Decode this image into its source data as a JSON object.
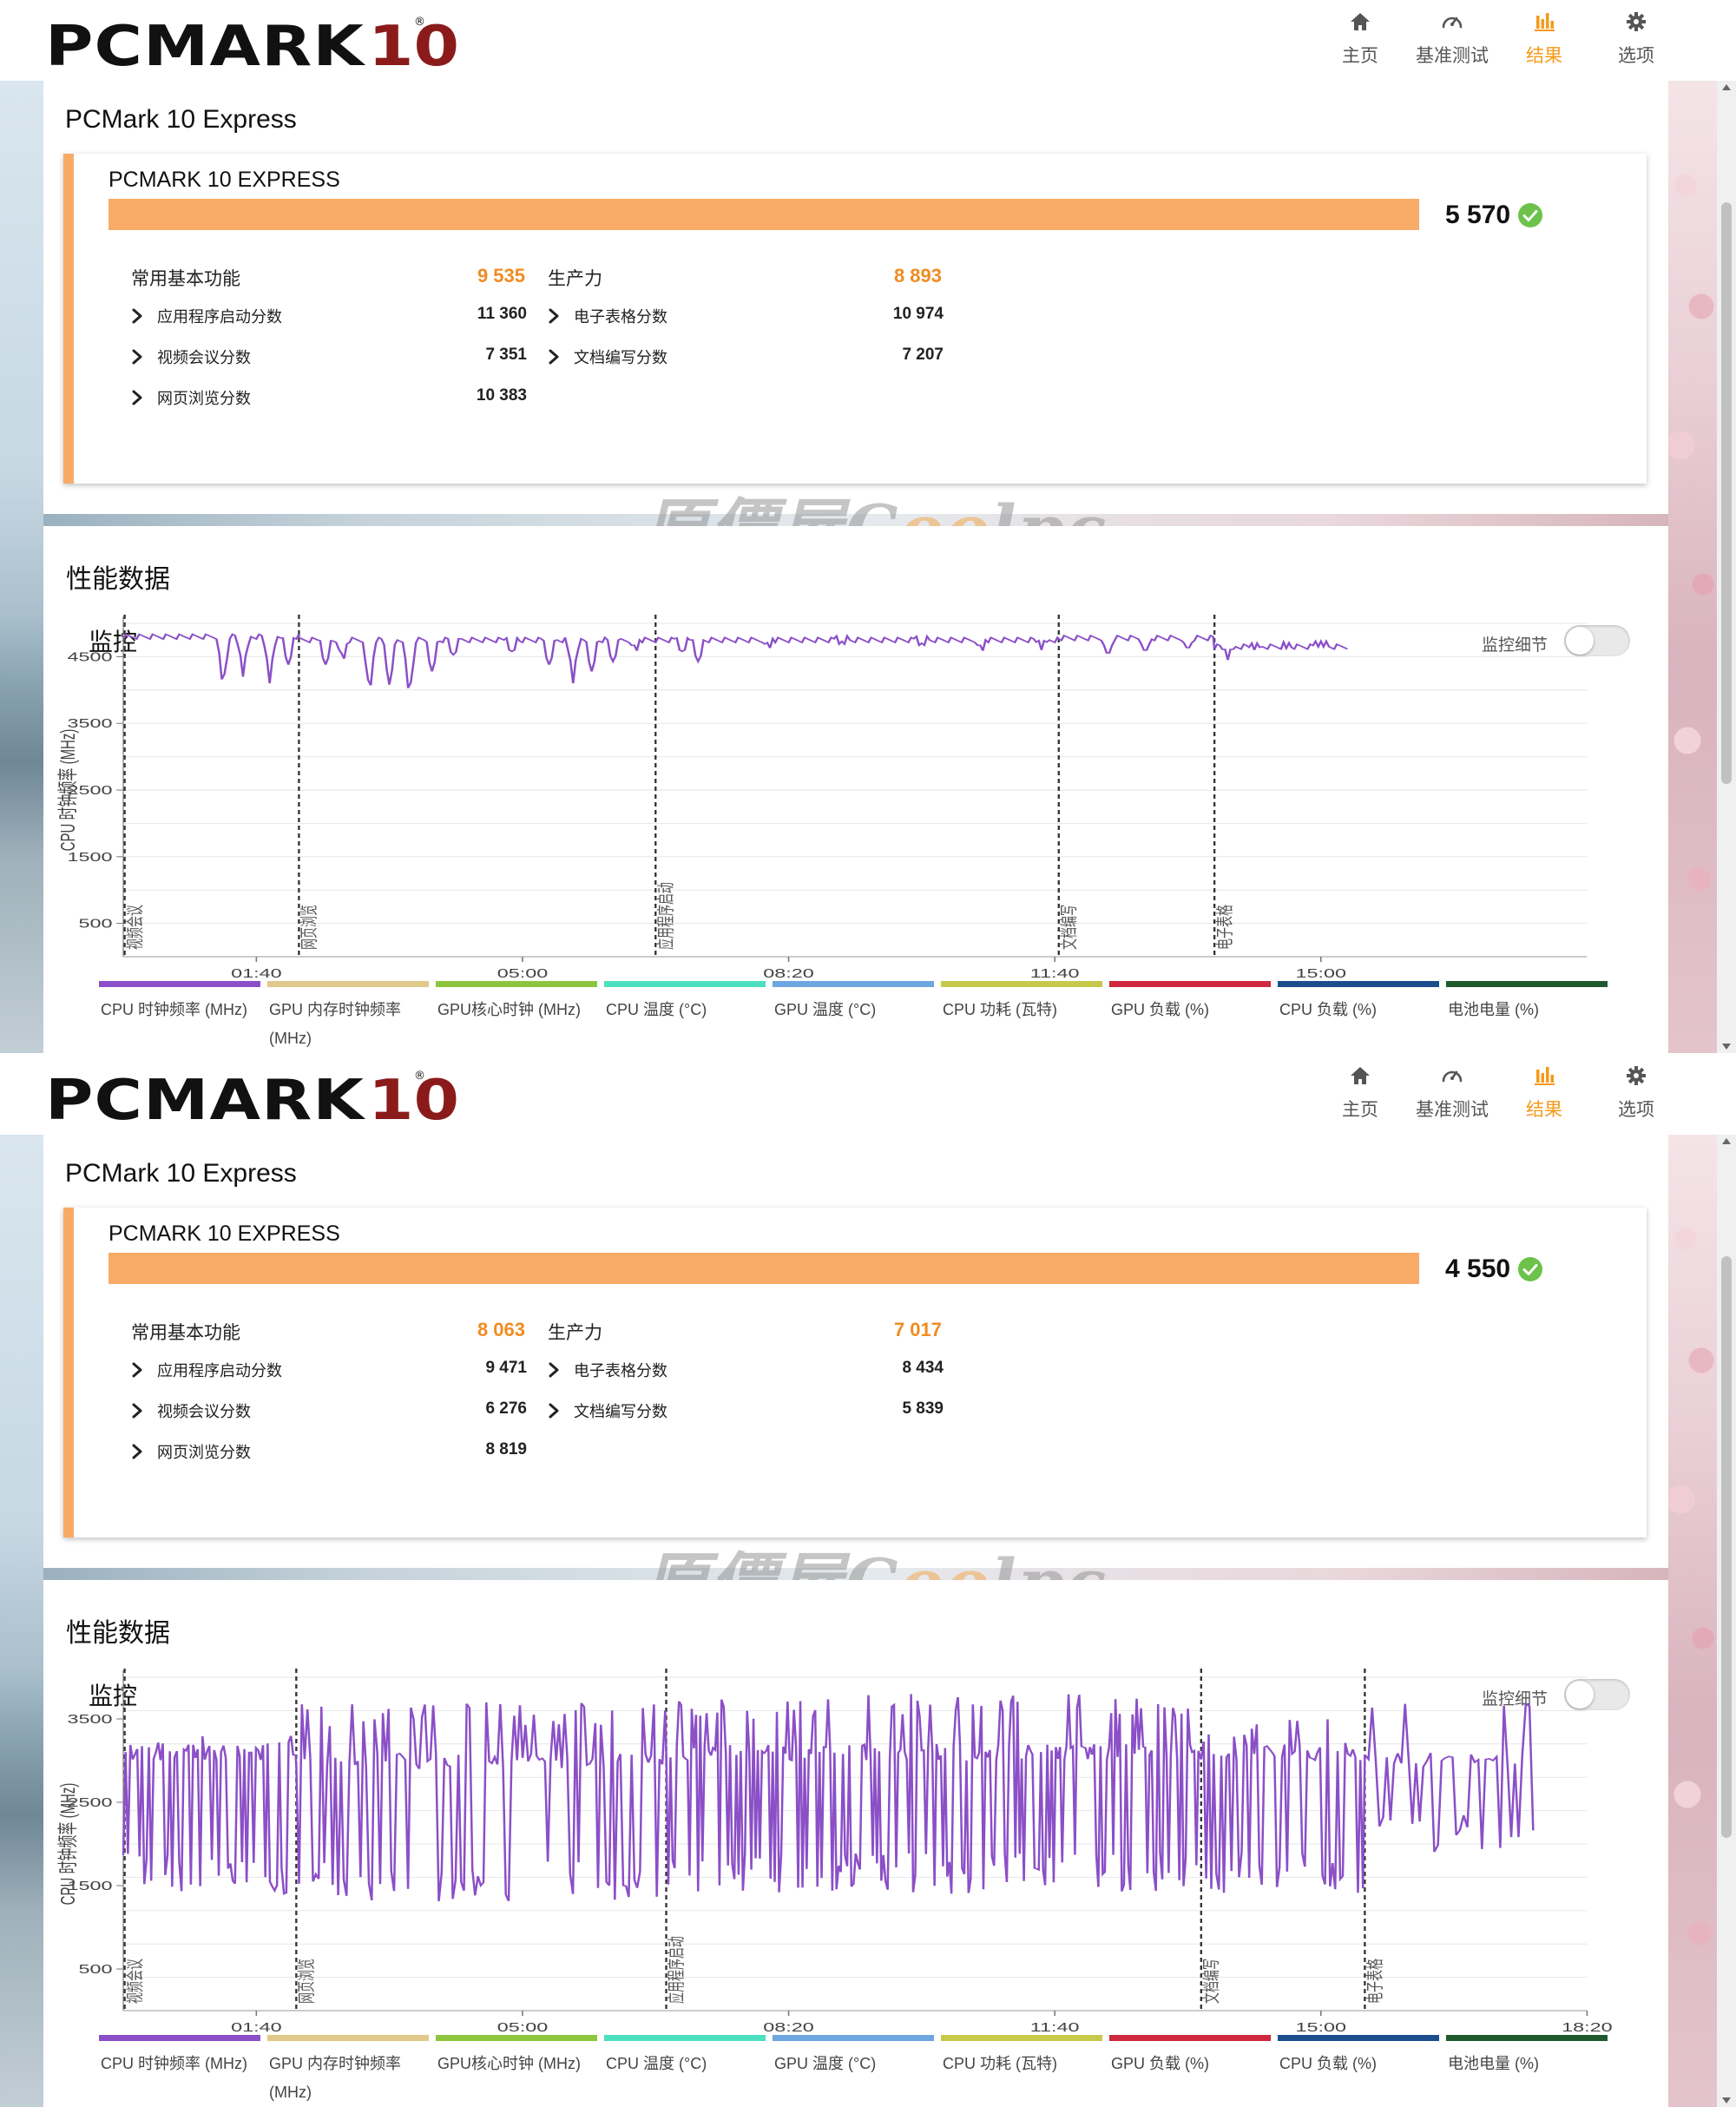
{
  "header": {
    "logo_main": "PCMARK",
    "logo_num": "10",
    "logo_reg": "®",
    "nav": [
      {
        "label": "主页",
        "icon": "home-icon",
        "active": false
      },
      {
        "label": "基准测试",
        "icon": "gauge-icon",
        "active": false
      },
      {
        "label": "结果",
        "icon": "bar-chart-icon",
        "active": true
      },
      {
        "label": "选项",
        "icon": "gear-icon",
        "active": false
      }
    ]
  },
  "colors": {
    "accent": "#f59a1b",
    "score_bar": "#f8ab66",
    "group_score": "#f08c22",
    "check": "#6cc24a",
    "cpu_line": "#8b4fc7"
  },
  "watermark": {
    "pre": "原價屋C",
    "o": "oo",
    "post": "lpc"
  },
  "windows": [
    {
      "express_title": "PCMark 10 Express",
      "card_title": "PCMARK 10 EXPRESS",
      "total_score": "5 570",
      "groups": [
        {
          "title": "常用基本功能",
          "score": "9 535",
          "items": [
            {
              "label": "应用程序启动分数",
              "value": "11 360"
            },
            {
              "label": "视频会议分数",
              "value": "7 351"
            },
            {
              "label": "网页浏览分数",
              "value": "10 383"
            }
          ]
        },
        {
          "title": "生产力",
          "score": "8 893",
          "items": [
            {
              "label": "电子表格分数",
              "value": "10 974"
            },
            {
              "label": "文档编写分数",
              "value": "7 207"
            }
          ]
        }
      ],
      "perf_title": "性能数据",
      "monitor_title": "监控",
      "toggle_label": "监控细节",
      "chart_data": {
        "type": "line",
        "ylabel": "CPU 时钟频率 (MHz)",
        "yticks": [
          500,
          1500,
          2500,
          3500,
          4500
        ],
        "ylim": [
          0,
          5000
        ],
        "xlim": [
          0,
          1100
        ],
        "xticks": [
          {
            "t": 100,
            "label": "01:40"
          },
          {
            "t": 300,
            "label": "05:00"
          },
          {
            "t": 500,
            "label": "08:20"
          },
          {
            "t": 700,
            "label": "11:40"
          },
          {
            "t": 900,
            "label": "15:00"
          }
        ],
        "markers": [
          {
            "t": 0,
            "label": "视频会议"
          },
          {
            "t": 132,
            "label": "网页浏览"
          },
          {
            "t": 400,
            "label": "应用程序启动"
          },
          {
            "t": 703,
            "label": "文档编写"
          },
          {
            "t": 820,
            "label": "电子表格"
          }
        ],
        "grid": true,
        "series": [
          {
            "name": "CPU 时钟频率 (MHz)",
            "segments": [
              {
                "t0": 0,
                "t1": 132,
                "base": 4800,
                "dips": [
                  [
                    75,
                    4000
                  ],
                  [
                    90,
                    4200
                  ],
                  [
                    110,
                    4100
                  ],
                  [
                    124,
                    4300
                  ]
                ]
              },
              {
                "t0": 132,
                "t1": 400,
                "base": 4750,
                "dips": [
                  [
                    152,
                    4300
                  ],
                  [
                    165,
                    4400
                  ],
                  [
                    185,
                    3900
                  ],
                  [
                    200,
                    4000
                  ],
                  [
                    215,
                    3850
                  ],
                  [
                    232,
                    4200
                  ],
                  [
                    248,
                    4450
                  ],
                  [
                    292,
                    4500
                  ],
                  [
                    320,
                    4300
                  ],
                  [
                    338,
                    4100
                  ],
                  [
                    352,
                    4200
                  ],
                  [
                    368,
                    4350
                  ],
                  [
                    385,
                    4550
                  ]
                ]
              },
              {
                "t0": 400,
                "t1": 703,
                "base": 4750,
                "dips": [
                  [
                    420,
                    4500
                  ],
                  [
                    432,
                    4350
                  ],
                  [
                    485,
                    4600
                  ],
                  [
                    540,
                    4650
                  ],
                  [
                    600,
                    4620
                  ],
                  [
                    645,
                    4550
                  ],
                  [
                    690,
                    4600
                  ]
                ]
              },
              {
                "t0": 703,
                "t1": 820,
                "base": 4780,
                "dips": [
                  [
                    740,
                    4500
                  ],
                  [
                    768,
                    4550
                  ],
                  [
                    800,
                    4600
                  ]
                ]
              },
              {
                "t0": 820,
                "t1": 920,
                "base": 4650,
                "dips": [
                  [
                    830,
                    4450
                  ],
                  [
                    850,
                    4600
                  ],
                  [
                    875,
                    4620
                  ],
                  [
                    900,
                    4650
                  ]
                ]
              }
            ]
          }
        ]
      },
      "legend": [
        "CPU 时钟频率 (MHz)",
        "GPU 内存时钟频率 (MHz)",
        "GPU核心时钟 (MHz)",
        "CPU 温度 (°C)",
        "GPU 温度 (°C)",
        "CPU 功耗 (瓦特)",
        "GPU 负载 (%)",
        "CPU 负载 (%)",
        "电池电量 (%)"
      ],
      "legend_colors": [
        "#8b4fc7",
        "#e2c88a",
        "#8cc63e",
        "#4de0c0",
        "#6ea6e0",
        "#c6c94a",
        "#d0283e",
        "#1c4d8c",
        "#1f5a2c"
      ]
    },
    {
      "express_title": "PCMark 10 Express",
      "card_title": "PCMARK 10 EXPRESS",
      "total_score": "4 550",
      "groups": [
        {
          "title": "常用基本功能",
          "score": "8 063",
          "items": [
            {
              "label": "应用程序启动分数",
              "value": "9 471"
            },
            {
              "label": "视频会议分数",
              "value": "6 276"
            },
            {
              "label": "网页浏览分数",
              "value": "8 819"
            }
          ]
        },
        {
          "title": "生产力",
          "score": "7 017",
          "items": [
            {
              "label": "电子表格分数",
              "value": "8 434"
            },
            {
              "label": "文档编写分数",
              "value": "5 839"
            }
          ]
        }
      ],
      "perf_title": "性能数据",
      "monitor_title": "监控",
      "toggle_label": "监控细节",
      "chart_data": {
        "type": "line",
        "ylabel": "CPU 时钟频率 (MHz)",
        "yticks": [
          500,
          1500,
          2500,
          3500
        ],
        "ylim": [
          0,
          4000
        ],
        "xlim": [
          0,
          1100
        ],
        "xticks": [
          {
            "t": 100,
            "label": "01:40"
          },
          {
            "t": 300,
            "label": "05:00"
          },
          {
            "t": 500,
            "label": "08:20"
          },
          {
            "t": 700,
            "label": "11:40"
          },
          {
            "t": 900,
            "label": "15:00"
          },
          {
            "t": 1100,
            "label": "18:20"
          }
        ],
        "markers": [
          {
            "t": 0,
            "label": "视频会议"
          },
          {
            "t": 130,
            "label": "网页浏览"
          },
          {
            "t": 408,
            "label": "应用程序启动"
          },
          {
            "t": 810,
            "label": "文档编写"
          },
          {
            "t": 933,
            "label": "电子表格"
          }
        ],
        "grid": true,
        "series": [
          {
            "name": "CPU 时钟频率 (MHz)",
            "segments": [
              {
                "t0": 0,
                "t1": 130,
                "base": 3100,
                "low": 1400,
                "high": 3300,
                "period": 3.5,
                "seed": 3
              },
              {
                "t0": 130,
                "t1": 408,
                "base": 3000,
                "low": 1300,
                "high": 3700,
                "period": 4.2,
                "seed": 7
              },
              {
                "t0": 408,
                "t1": 810,
                "base": 3100,
                "low": 1400,
                "high": 3800,
                "period": 3.2,
                "seed": 11
              },
              {
                "t0": 810,
                "t1": 933,
                "base": 3100,
                "low": 1400,
                "high": 3500,
                "period": 3.8,
                "seed": 17
              },
              {
                "t0": 933,
                "t1": 1060,
                "base": 3000,
                "low": 1900,
                "high": 3800,
                "period": 5.5,
                "seed": 23
              }
            ]
          }
        ]
      },
      "legend": [
        "CPU 时钟频率 (MHz)",
        "GPU 内存时钟频率 (MHz)",
        "GPU核心时钟 (MHz)",
        "CPU 温度 (°C)",
        "GPU 温度 (°C)",
        "CPU 功耗 (瓦特)",
        "GPU 负载 (%)",
        "CPU 负载 (%)",
        "电池电量 (%)"
      ],
      "legend_colors": [
        "#8b4fc7",
        "#e2c88a",
        "#8cc63e",
        "#4de0c0",
        "#6ea6e0",
        "#c6c94a",
        "#d0283e",
        "#1c4d8c",
        "#1f5a2c"
      ]
    }
  ]
}
